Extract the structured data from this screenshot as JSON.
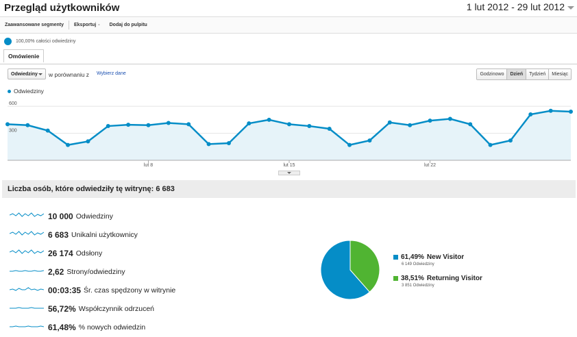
{
  "header": {
    "title": "Przegląd użytkowników",
    "date_range": "1 lut 2012 - 29 lut 2012"
  },
  "toolbar": {
    "segments_label": "Zaawansowane segmenty",
    "export_label": "Eksportuj",
    "export_caret": "-",
    "dashboard_label": "Dodaj do pulpitu"
  },
  "segment": {
    "label": "100,00% całości odwiedziny"
  },
  "tabs": [
    {
      "label": "Omówienie"
    }
  ],
  "controls": {
    "metric_select": "Odwiedziny",
    "compare_text": "w porównaniu z",
    "choose_label": "Wybierz dane",
    "granularity": [
      "Godzinowo",
      "Dzień",
      "Tydzień",
      "Miesiąc"
    ],
    "active_granularity": "Dzień"
  },
  "colors": {
    "line": "#058dc7",
    "fill": "#e6f3f9",
    "new": "#058dc7",
    "returning": "#50b432"
  },
  "chart_data": {
    "type": "area",
    "legend": "Odwiedziny",
    "x": [
      1,
      2,
      3,
      4,
      5,
      6,
      7,
      8,
      9,
      10,
      11,
      12,
      13,
      14,
      15,
      16,
      17,
      18,
      19,
      20,
      21,
      22,
      23,
      24,
      25,
      26,
      27,
      28,
      29
    ],
    "values": [
      400,
      390,
      330,
      170,
      210,
      380,
      395,
      390,
      415,
      400,
      180,
      190,
      410,
      450,
      400,
      380,
      350,
      170,
      220,
      420,
      390,
      440,
      460,
      400,
      170,
      220,
      510,
      550,
      540
    ],
    "y_ticks": [
      "600",
      "300"
    ],
    "x_ticks": [
      "lut 8",
      "lut 15",
      "lut 22"
    ],
    "ylim": [
      0,
      700
    ]
  },
  "summary": {
    "label": "Liczba osób, które odwiedziły tę witrynę: 6 683"
  },
  "stats": [
    {
      "value": "10 000",
      "label": "Odwiedziny"
    },
    {
      "value": "6 683",
      "label": "Unikalni użytkownicy"
    },
    {
      "value": "26 174",
      "label": "Odsłony"
    },
    {
      "value": "2,62",
      "label": "Strony/odwiedziny"
    },
    {
      "value": "00:03:35",
      "label": "Śr. czas spędzony w witrynie"
    },
    {
      "value": "56,72%",
      "label": "Współczynnik odrzuceń"
    },
    {
      "value": "61,48%",
      "label": "% nowych odwiedzin"
    }
  ],
  "pie": {
    "slices": [
      {
        "percent": "61,49%",
        "name": "New Visitor",
        "fraction": 0.6149,
        "sub": "6 149 Odwiedziny"
      },
      {
        "percent": "38,51%",
        "name": "Returning Visitor",
        "fraction": 0.3851,
        "sub": "3 851 Odwiedziny"
      }
    ]
  }
}
